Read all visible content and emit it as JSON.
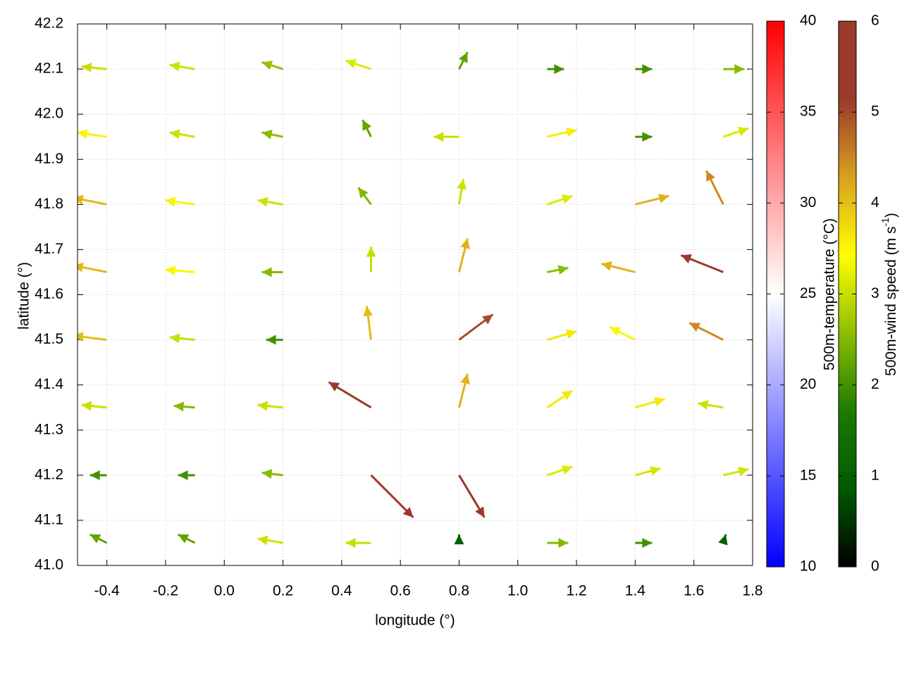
{
  "chart_data": {
    "type": "vector",
    "xlabel": "longitude (°)",
    "ylabel": "latitude (°)",
    "xlim": [
      -0.5,
      1.8
    ],
    "ylim": [
      41.0,
      42.2
    ],
    "xticks": [
      -0.4,
      -0.2,
      {
        "value": 0,
        "label": "0.0"
      },
      0.2,
      0.4,
      0.6,
      0.8,
      {
        "value": 1,
        "label": "1.0"
      },
      1.2,
      1.4,
      1.6,
      1.8
    ],
    "yticks": [
      {
        "value": 41,
        "label": "41.0"
      },
      41.1,
      41.2,
      41.3,
      41.4,
      41.5,
      41.6,
      41.7,
      41.8,
      41.9,
      {
        "value": 42,
        "label": "42.0"
      },
      42.1,
      42.2
    ],
    "grid": true,
    "colorbars": [
      {
        "label": "500m-temperature (°C)",
        "lim": [
          10,
          40
        ],
        "ticks": [
          10,
          15,
          20,
          25,
          30,
          35,
          40
        ],
        "colors": [
          "#0000ff",
          "#ffffff",
          "#ff0000"
        ]
      },
      {
        "label": "500m-wind speed (m s",
        "label_sup": "-1",
        "label_end": ")",
        "lim": [
          0,
          6
        ],
        "ticks": [
          0,
          1,
          2,
          3,
          4,
          5,
          6
        ],
        "colors": [
          "#000000",
          "#005a00",
          "#1e7a00",
          "#8cbf00",
          "#ffff00",
          "#d8a020",
          "#9a3a2a",
          "#9a3a2a"
        ]
      }
    ],
    "vectors": {
      "x": [
        -0.4,
        -0.1,
        0.2,
        0.5,
        0.8,
        1.1,
        1.4,
        1.7,
        -0.4,
        -0.1,
        0.2,
        0.5,
        0.8,
        1.1,
        1.4,
        1.7,
        -0.4,
        -0.1,
        0.2,
        0.5,
        0.8,
        1.1,
        1.4,
        1.7,
        -0.4,
        -0.1,
        0.2,
        0.5,
        0.8,
        1.1,
        1.4,
        1.7,
        -0.4,
        -0.1,
        0.2,
        0.5,
        0.8,
        1.1,
        1.4,
        1.7,
        -0.4,
        -0.1,
        0.2,
        0.5,
        0.8,
        1.1,
        1.4,
        1.7,
        -0.4,
        -0.1,
        0.2,
        0.5,
        0.8,
        1.1,
        1.4,
        1.7,
        -0.4,
        -0.1,
        0.2,
        0.5,
        0.8,
        1.1,
        1.4,
        1.7
      ],
      "y": [
        42.1,
        42.1,
        42.1,
        42.1,
        42.1,
        42.1,
        42.1,
        42.1,
        41.95,
        41.95,
        41.95,
        41.95,
        41.95,
        41.95,
        41.95,
        41.95,
        41.8,
        41.8,
        41.8,
        41.8,
        41.8,
        41.8,
        41.8,
        41.8,
        41.65,
        41.65,
        41.65,
        41.65,
        41.65,
        41.65,
        41.65,
        41.65,
        41.5,
        41.5,
        41.5,
        41.5,
        41.5,
        41.5,
        41.5,
        41.5,
        41.35,
        41.35,
        41.35,
        41.35,
        41.35,
        41.35,
        41.35,
        41.35,
        41.2,
        41.2,
        41.2,
        41.2,
        41.2,
        41.2,
        41.2,
        41.2,
        41.05,
        41.05,
        41.05,
        41.05,
        41.05,
        41.05,
        41.05,
        41.05
      ],
      "u": [
        -3,
        -3,
        -2.5,
        -3,
        1,
        2,
        2,
        2.5,
        -3.5,
        -3,
        -2.5,
        -1,
        -3,
        3.5,
        2,
        3,
        -4,
        -3.5,
        -3,
        -1.5,
        0.5,
        3,
        4,
        -2,
        -4,
        -3.5,
        -2.5,
        0,
        1,
        2.5,
        -4,
        -5,
        -4,
        -3,
        -2,
        -0.5,
        4,
        3.5,
        -3,
        -4,
        -3,
        -2.5,
        -3,
        -5,
        1,
        3,
        3.5,
        -3,
        -2,
        -2,
        -2.5,
        5,
        3,
        3,
        3,
        3,
        -2,
        -2,
        -3,
        -3,
        0,
        2.5,
        2,
        0.3
      ],
      "v": [
        0.3,
        0.5,
        0.8,
        1,
        2,
        0,
        0,
        0,
        0.5,
        0.5,
        0.5,
        2,
        0,
        0.8,
        0,
        1,
        0.8,
        0.5,
        0.5,
        2,
        3,
        1,
        1,
        4,
        0.8,
        0.3,
        0,
        3,
        4,
        0.5,
        1,
        2,
        0.5,
        0.3,
        0,
        4,
        3,
        1,
        1.5,
        2,
        0.3,
        0.2,
        0.3,
        3,
        4,
        2,
        1,
        0.5,
        0,
        0,
        0.3,
        -5,
        -5,
        1,
        0.8,
        0.7,
        1,
        1,
        0.5,
        0,
        1,
        0,
        0,
        1
      ]
    }
  }
}
